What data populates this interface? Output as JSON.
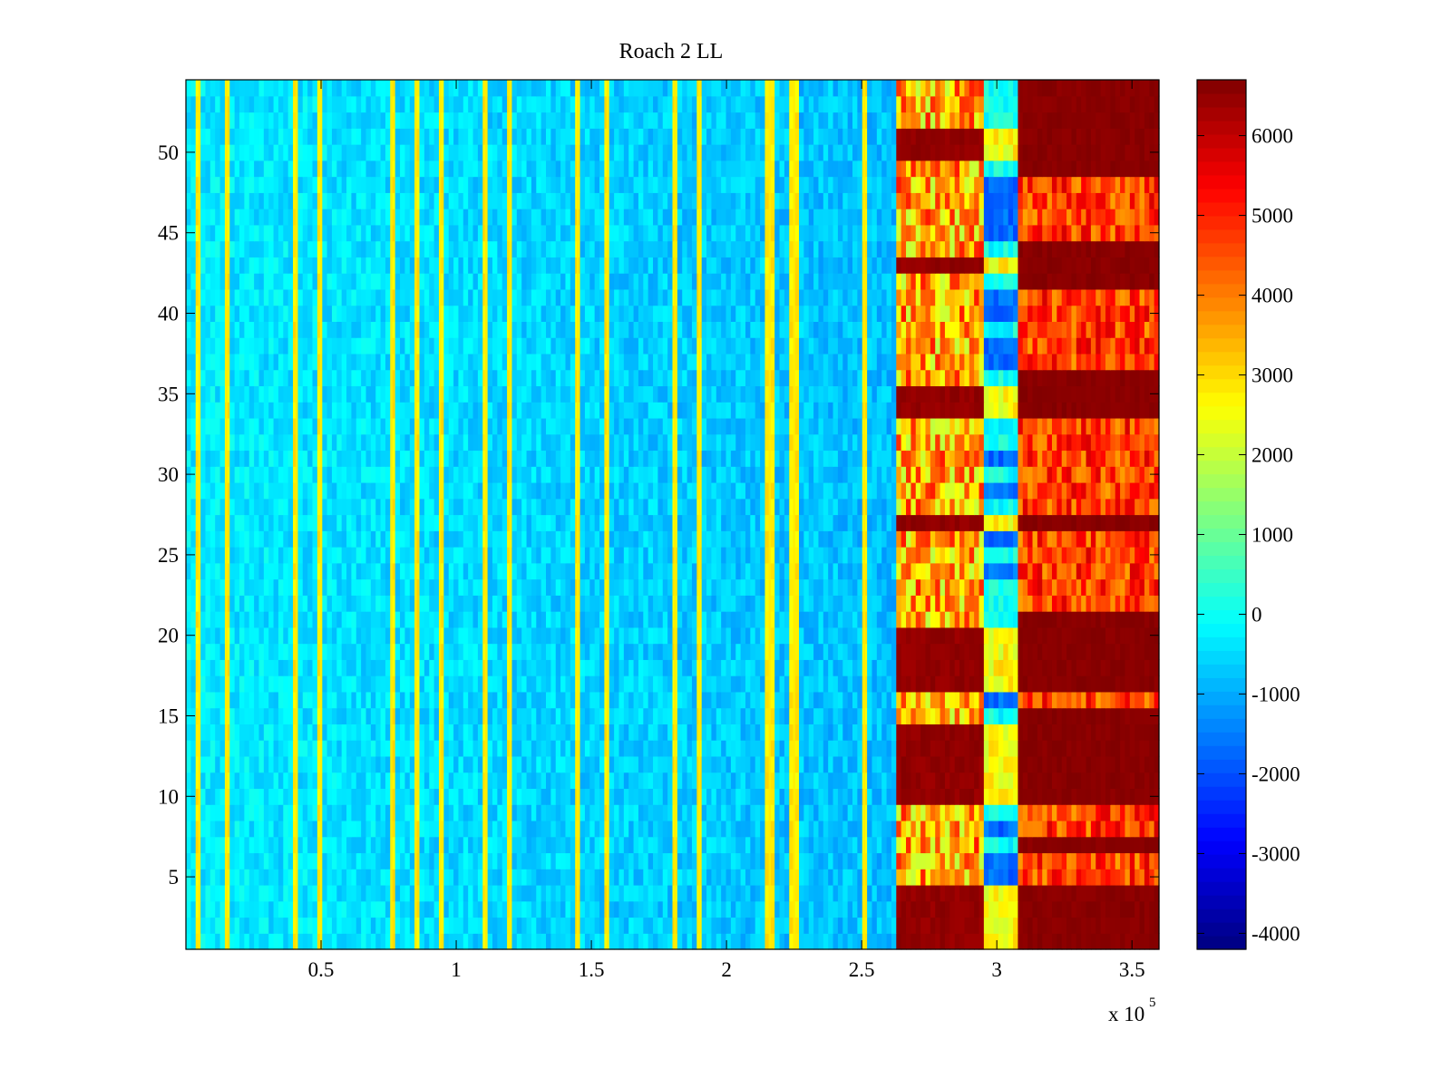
{
  "chart_data": {
    "type": "heatmap",
    "title": "Roach 2 LL",
    "xlabel": "",
    "ylabel": "",
    "x_multiplier_label": "x 10",
    "x_multiplier_exponent": "5",
    "xlim": [
      0,
      3.6
    ],
    "x_scale": 100000,
    "ylim": [
      0.5,
      54.5
    ],
    "rows": 54,
    "x_ticks": [
      0.5,
      1,
      1.5,
      2,
      2.5,
      3,
      3.5
    ],
    "x_tick_labels": [
      "0.5",
      "1",
      "1.5",
      "2",
      "2.5",
      "3",
      "3.5"
    ],
    "y_ticks": [
      5,
      10,
      15,
      20,
      25,
      30,
      35,
      40,
      45,
      50
    ],
    "y_tick_labels": [
      "5",
      "10",
      "15",
      "20",
      "25",
      "30",
      "35",
      "40",
      "45",
      "50"
    ],
    "colormap": "jet",
    "clim": [
      -4200,
      6700
    ],
    "colorbar_ticks": [
      -4000,
      -3000,
      -2000,
      -1000,
      0,
      1000,
      2000,
      3000,
      4000,
      5000,
      6000
    ],
    "colorbar_tick_labels": [
      "-4000",
      "-3000",
      "-2000",
      "-1000",
      "0",
      "1000",
      "2000",
      "3000",
      "4000",
      "5000",
      "6000"
    ],
    "grid": false,
    "regions": [
      {
        "x_range": [
          0,
          2.63
        ],
        "typical_value": -300,
        "description": "low baseline"
      },
      {
        "x_range": [
          2.63,
          2.95
        ],
        "typical_value": 4500
      },
      {
        "x_range": [
          2.95,
          3.07
        ],
        "typical_value": 0
      },
      {
        "x_range": [
          3.07,
          3.6
        ],
        "typical_value": 5500
      }
    ],
    "vertical_streak_x": [
      0.05,
      0.15,
      0.41,
      0.5,
      0.76,
      0.85,
      0.94,
      1.11,
      1.2,
      1.45,
      1.56,
      1.81,
      1.9,
      2.16,
      2.25,
      2.51
    ],
    "streak_value": 2800,
    "saturated_rows_band1": [
      1,
      2,
      3,
      4,
      10,
      11,
      12,
      13,
      14,
      17,
      18,
      19,
      20,
      27,
      34,
      35,
      43,
      50,
      51
    ],
    "saturated_rows_band2": [
      1,
      2,
      3,
      4,
      7,
      10,
      11,
      12,
      13,
      14,
      15,
      17,
      18,
      19,
      20,
      21,
      27,
      34,
      35,
      36,
      42,
      43,
      44,
      49,
      50,
      51,
      52,
      53,
      54
    ],
    "mid_band_low_rows": [
      5,
      6,
      8,
      16,
      24,
      26,
      29,
      31,
      37,
      38,
      40,
      41,
      45,
      46,
      47,
      48
    ]
  }
}
